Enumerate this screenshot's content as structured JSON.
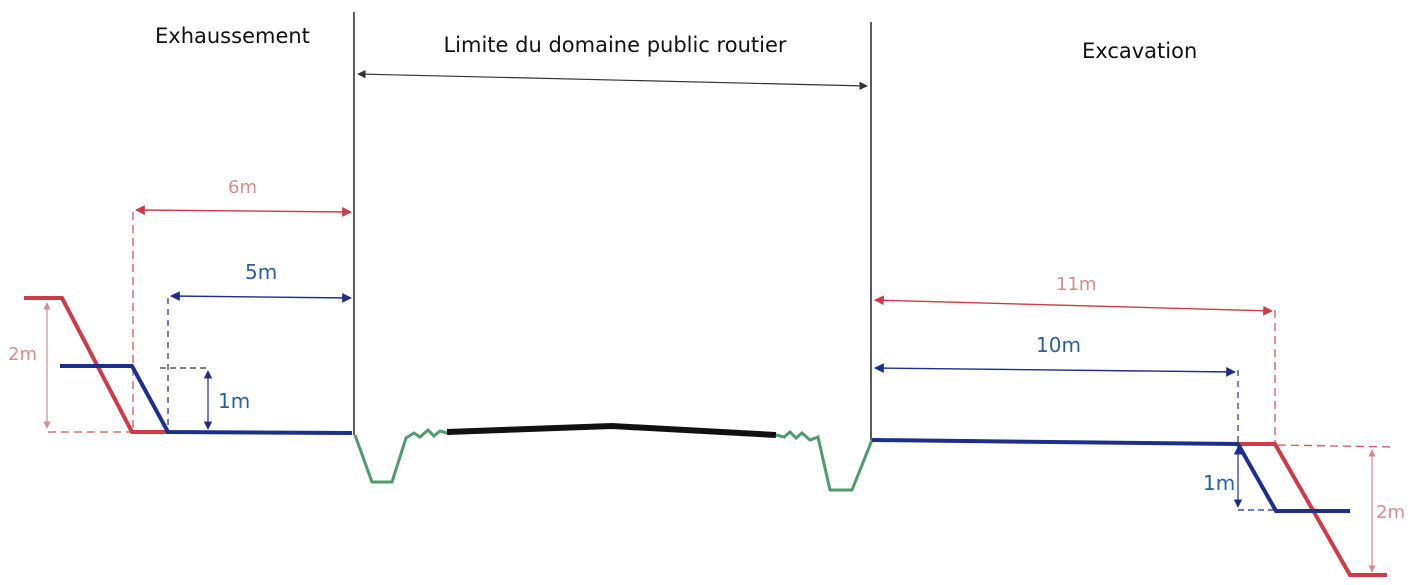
{
  "labels": {
    "left_title": "Exhaussement",
    "center_title": "Limite du domaine public routier",
    "right_title": "Excavation"
  },
  "dimensions": {
    "left_red_width": "6m",
    "left_blue_width": "5m",
    "left_red_height": "2m",
    "left_blue_height": "1m",
    "right_red_width": "11m",
    "right_blue_width": "10m",
    "right_blue_height": "1m",
    "right_red_height": "2m"
  },
  "colors": {
    "red": "#cc3b47",
    "red_text": "#d98a90",
    "blue": "#1e2f8a",
    "blue_text": "#2a5fa0",
    "green": "#4f9a6e",
    "road": "#111111",
    "dash": "#cc5a62",
    "line": "#333333"
  }
}
